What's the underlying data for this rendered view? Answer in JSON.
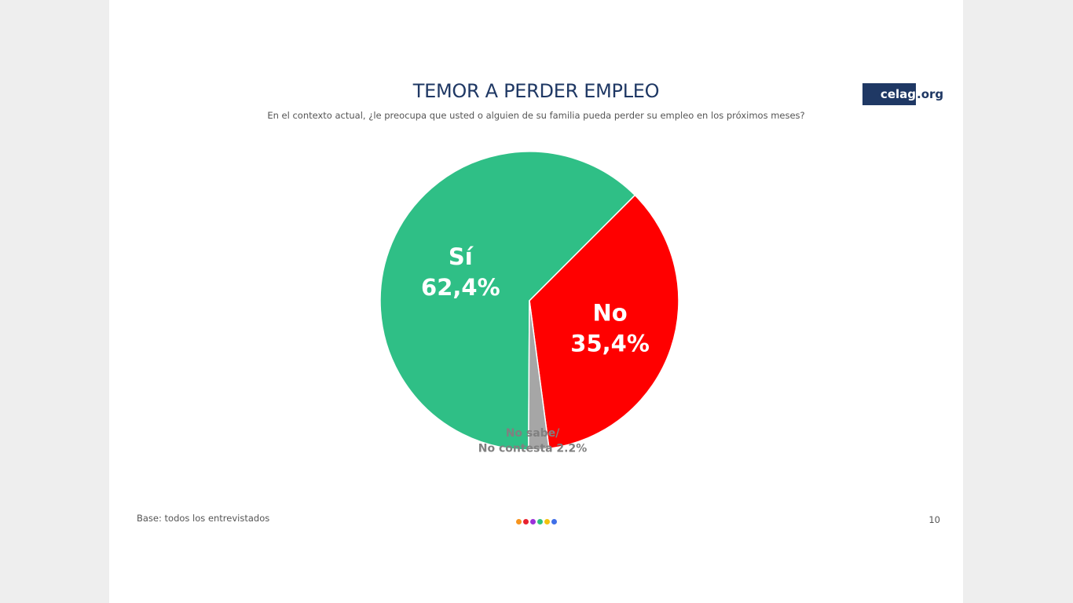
{
  "header": {
    "title": "TEMOR A PERDER EMPLEO",
    "subtitle": "En el contexto actual, ¿le preocupa que usted o alguien de su familia pueda perder su empleo en los próximos meses?"
  },
  "logo": {
    "main": "celag",
    "suffix": ".org"
  },
  "footer": {
    "base": "Base: todos los entrevistados",
    "page": "10"
  },
  "dots": [
    {
      "name": "orange-dot",
      "color": "#f7941d"
    },
    {
      "name": "red-dot",
      "color": "#e8212f"
    },
    {
      "name": "purple-dot",
      "color": "#9b30d9"
    },
    {
      "name": "green-dot",
      "color": "#2ec27e"
    },
    {
      "name": "yellow-dot",
      "color": "#f4c20d"
    },
    {
      "name": "blue-dot",
      "color": "#3f6fe8"
    }
  ],
  "chart_data": {
    "type": "pie",
    "title": "TEMOR A PERDER EMPLEO",
    "slices": [
      {
        "label": "Sí",
        "value": 62.4,
        "display": "62,4%",
        "color": "#2fbf86",
        "text_color": "#ffffff"
      },
      {
        "label": "No",
        "value": 35.4,
        "display": "35,4%",
        "color": "#ff0000",
        "text_color": "#ffffff"
      },
      {
        "label": "No sabe/ No contesta",
        "value": 2.2,
        "display": "2.2%",
        "color": "#a6a6a6",
        "text_color": "#808080"
      }
    ]
  }
}
